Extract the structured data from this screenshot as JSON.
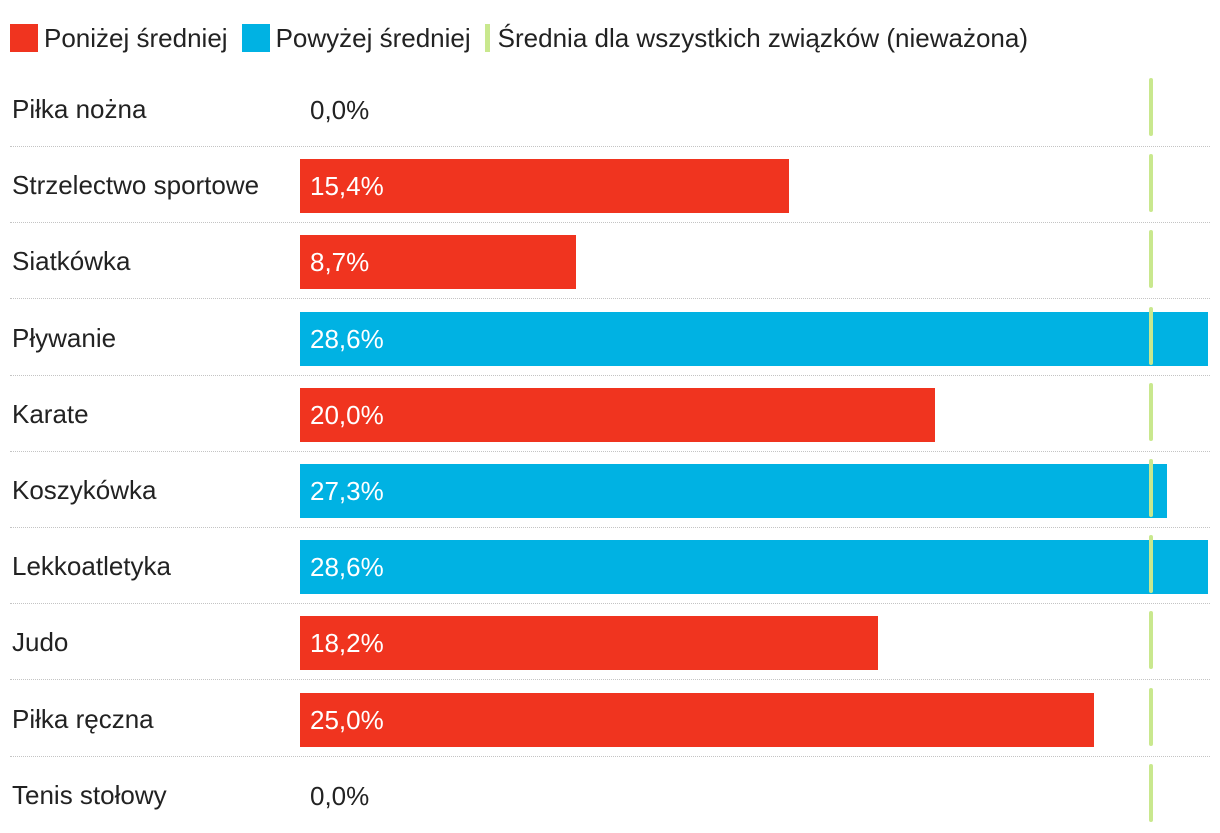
{
  "colors": {
    "below": "#f0341f",
    "above": "#00b2e3",
    "average": "#c9e88e",
    "value_on_bar": "#ffffff",
    "value_no_bar": "#222222"
  },
  "legend": {
    "below_label": "Poniżej średniej",
    "above_label": "Powyżej średniej",
    "average_label": "Średnia dla wszystkich związków (nieważona)"
  },
  "chart_data": {
    "type": "bar",
    "orientation": "horizontal",
    "title": "",
    "xlabel": "",
    "ylabel": "",
    "xlim": [
      0,
      28.6
    ],
    "average": 26.8,
    "categories": [
      "Piłka nożna",
      "Strzelectwo sportowe",
      "Siatkówka",
      "Pływanie",
      "Karate",
      "Koszykówka",
      "Lekkoatletyka",
      "Judo",
      "Piłka ręczna",
      "Tenis stołowy"
    ],
    "values": [
      0.0,
      15.4,
      8.7,
      28.6,
      20.0,
      27.3,
      28.6,
      18.2,
      25.0,
      0.0
    ],
    "value_labels": [
      "0,0%",
      "15,4%",
      "8,7%",
      "28,6%",
      "20,0%",
      "27,3%",
      "28,6%",
      "18,2%",
      "25,0%",
      "0,0%"
    ],
    "series": [
      {
        "name": "Poniżej średniej",
        "indices": [
          0,
          1,
          2,
          4,
          7,
          8,
          9
        ]
      },
      {
        "name": "Powyżej średniej",
        "indices": [
          3,
          5,
          6
        ]
      }
    ]
  }
}
